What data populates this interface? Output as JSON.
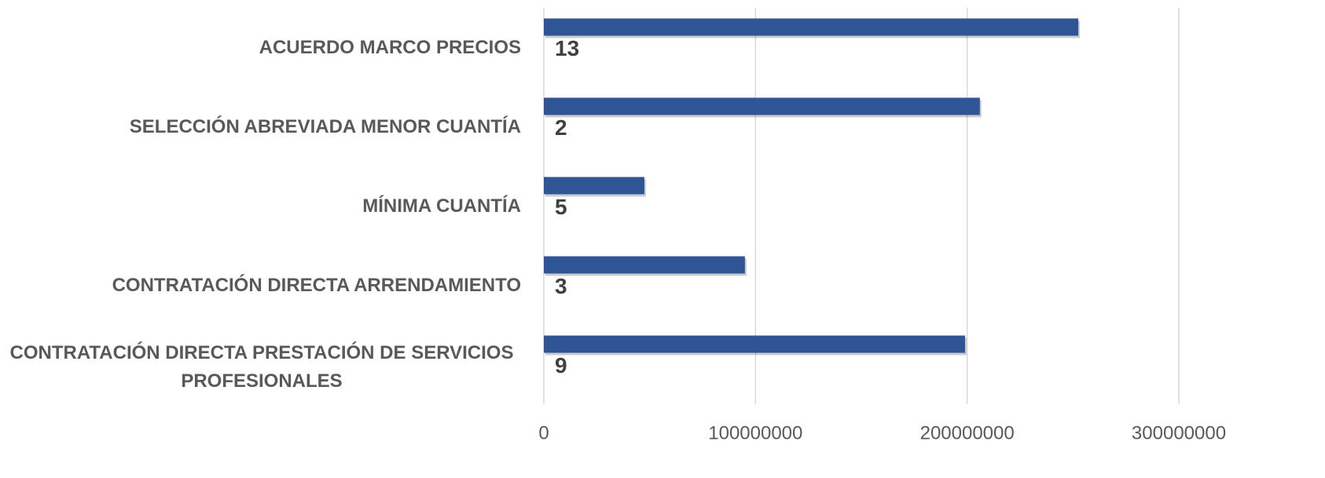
{
  "chart_data": {
    "type": "bar",
    "orientation": "horizontal",
    "categories": [
      "ACUERDO MARCO PRECIOS",
      "SELECCIÓN ABREVIADA MENOR CUANTÍA",
      "MÍNIMA CUANTÍA",
      "CONTRATACIÓN DIRECTA ARRENDAMIENTO",
      "CONTRATACIÓN DIRECTA PRESTACIÓN DE SERVICIOS PROFESIONALES"
    ],
    "values": [
      252500000,
      206000000,
      47500000,
      95000000,
      199000000
    ],
    "counts": [
      13,
      2,
      5,
      3,
      9
    ],
    "color": "#2f5597",
    "xlim": [
      0,
      300000000
    ],
    "xticks": [
      0,
      100000000,
      200000000,
      300000000
    ],
    "grid": true
  }
}
